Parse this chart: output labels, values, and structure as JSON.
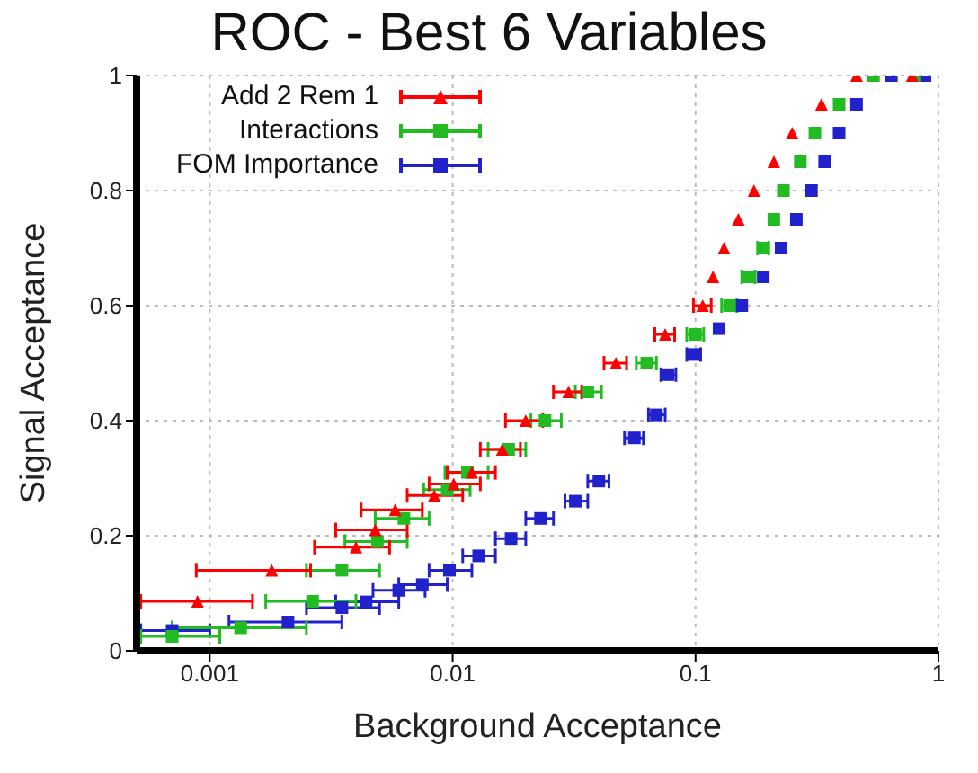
{
  "chart_data": {
    "type": "scatter",
    "title": "ROC - Best 6 Variables",
    "xlabel": "Background Acceptance",
    "ylabel": "Signal Acceptance",
    "log": "x",
    "xlim": [
      0.0005,
      1
    ],
    "xticks": [
      0.001,
      0.01,
      0.1,
      1
    ],
    "ylim": [
      0,
      1
    ],
    "yticks": [
      0,
      0.2,
      0.4,
      0.6,
      0.8,
      1
    ],
    "grid": true,
    "legend": "top left",
    "series": [
      {
        "name": "Add 2 Rem 1",
        "color": "#ff0000",
        "marker": "triangle",
        "x": [
          0.00089,
          0.0018,
          0.004,
          0.0048,
          0.0058,
          0.0084,
          0.0101,
          0.012,
          0.016,
          0.02,
          0.03,
          0.047,
          0.075,
          0.107,
          0.118,
          0.131,
          0.15,
          0.174,
          0.21,
          0.25,
          0.33,
          0.46,
          0.78
        ],
        "values": [
          0.086,
          0.14,
          0.18,
          0.21,
          0.245,
          0.27,
          0.29,
          0.31,
          0.35,
          0.4,
          0.45,
          0.5,
          0.55,
          0.6,
          0.65,
          0.7,
          0.75,
          0.8,
          0.85,
          0.9,
          0.95,
          1,
          1
        ],
        "xerrors": [
          [
            0.00052,
            0.0015
          ],
          [
            0.00088,
            0.0026
          ],
          [
            0.0027,
            0.0055
          ],
          [
            0.0033,
            0.0065
          ],
          [
            0.0042,
            0.0075
          ],
          [
            0.0065,
            0.011
          ],
          [
            0.008,
            0.013
          ],
          [
            0.0095,
            0.015
          ],
          [
            0.013,
            0.019
          ],
          [
            0.0165,
            0.0235
          ],
          [
            0.026,
            0.034
          ],
          [
            0.042,
            0.052
          ],
          [
            0.068,
            0.082
          ],
          [
            0.098,
            0.116
          ],
          null,
          null,
          null,
          null,
          null,
          null,
          null,
          null,
          null
        ]
      },
      {
        "name": "Interactions",
        "color": "#22bb22",
        "marker": "square",
        "x": [
          0.0007,
          0.00134,
          0.00265,
          0.0035,
          0.0049,
          0.0063,
          0.0095,
          0.0115,
          0.017,
          0.024,
          0.036,
          0.063,
          0.1,
          0.138,
          0.165,
          0.19,
          0.21,
          0.23,
          0.27,
          0.31,
          0.39,
          0.54,
          0.8
        ],
        "values": [
          0.025,
          0.04,
          0.086,
          0.14,
          0.19,
          0.23,
          0.28,
          0.31,
          0.35,
          0.4,
          0.45,
          0.5,
          0.55,
          0.6,
          0.65,
          0.7,
          0.75,
          0.8,
          0.85,
          0.9,
          0.95,
          1,
          1
        ],
        "xerrors": [
          [
            0.00052,
            0.0011
          ],
          [
            0.0007,
            0.0025
          ],
          [
            0.0017,
            0.004
          ],
          [
            0.0025,
            0.005
          ],
          [
            0.0036,
            0.0065
          ],
          [
            0.0048,
            0.008
          ],
          [
            0.0076,
            0.0118
          ],
          [
            0.0093,
            0.014
          ],
          [
            0.014,
            0.02
          ],
          [
            0.021,
            0.028
          ],
          [
            0.032,
            0.041
          ],
          [
            0.057,
            0.069
          ],
          [
            0.092,
            0.108
          ],
          [
            0.128,
            0.148
          ],
          [
            0.155,
            0.176
          ],
          [
            0.18,
            0.2
          ],
          null,
          null,
          null,
          null,
          null,
          null,
          null
        ]
      },
      {
        "name": "FOM Importance",
        "color": "#2222cc",
        "marker": "square",
        "x": [
          0.0007,
          0.0021,
          0.0035,
          0.0044,
          0.006,
          0.0075,
          0.0097,
          0.0128,
          0.0174,
          0.023,
          0.032,
          0.04,
          0.056,
          0.069,
          0.077,
          0.098,
          0.125,
          0.155,
          0.19,
          0.225,
          0.26,
          0.3,
          0.34,
          0.39,
          0.46,
          0.64,
          0.88
        ],
        "values": [
          0.035,
          0.05,
          0.075,
          0.085,
          0.105,
          0.115,
          0.14,
          0.165,
          0.195,
          0.23,
          0.26,
          0.295,
          0.37,
          0.41,
          0.48,
          0.515,
          0.56,
          0.6,
          0.65,
          0.7,
          0.75,
          0.8,
          0.85,
          0.9,
          0.95,
          1,
          1
        ],
        "xerrors": [
          [
            0.00052,
            0.001
          ],
          [
            0.0012,
            0.0035
          ],
          [
            0.0025,
            0.005
          ],
          [
            0.0033,
            0.006
          ],
          [
            0.0047,
            0.0077
          ],
          [
            0.006,
            0.0095
          ],
          [
            0.008,
            0.012
          ],
          [
            0.011,
            0.015
          ],
          [
            0.015,
            0.02
          ],
          [
            0.02,
            0.026
          ],
          [
            0.029,
            0.036
          ],
          [
            0.036,
            0.044
          ],
          [
            0.051,
            0.061
          ],
          [
            0.064,
            0.075
          ],
          [
            0.072,
            0.083
          ],
          [
            0.092,
            0.105
          ],
          null,
          null,
          null,
          null,
          null,
          null,
          null,
          null,
          null,
          null,
          null
        ]
      }
    ]
  }
}
